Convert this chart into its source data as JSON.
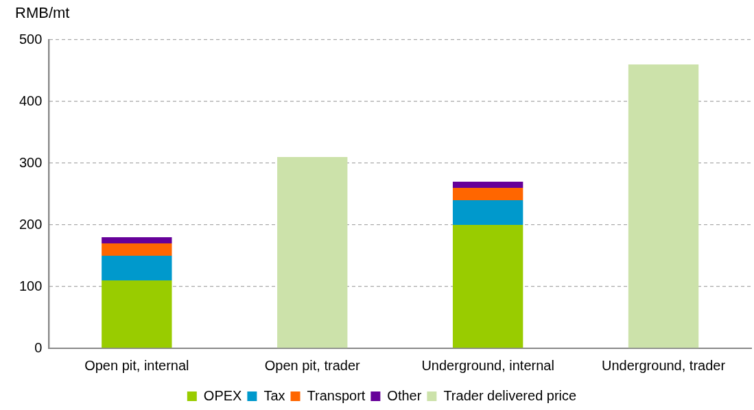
{
  "chart_data": {
    "type": "bar",
    "stacked": true,
    "ylabel": "RMB/mt",
    "categories": [
      "Open pit, internal",
      "Open pit, trader",
      "Underground, internal",
      "Underground, trader"
    ],
    "series": [
      {
        "name": "OPEX",
        "color": "#99cc00",
        "values": [
          110,
          null,
          200,
          null
        ]
      },
      {
        "name": "Tax",
        "color": "#0099cc",
        "values": [
          40,
          null,
          40,
          null
        ]
      },
      {
        "name": "Transport",
        "color": "#ff6600",
        "values": [
          20,
          null,
          20,
          null
        ]
      },
      {
        "name": "Other",
        "color": "#660099",
        "values": [
          10,
          null,
          10,
          null
        ]
      },
      {
        "name": "Trader delivered price",
        "color": "#cce2aa",
        "values": [
          null,
          310,
          null,
          460
        ]
      }
    ],
    "ylim": [
      0,
      500
    ],
    "yticks": [
      0,
      100,
      200,
      300,
      400,
      500
    ],
    "grid": "y",
    "legend": "bottom"
  }
}
